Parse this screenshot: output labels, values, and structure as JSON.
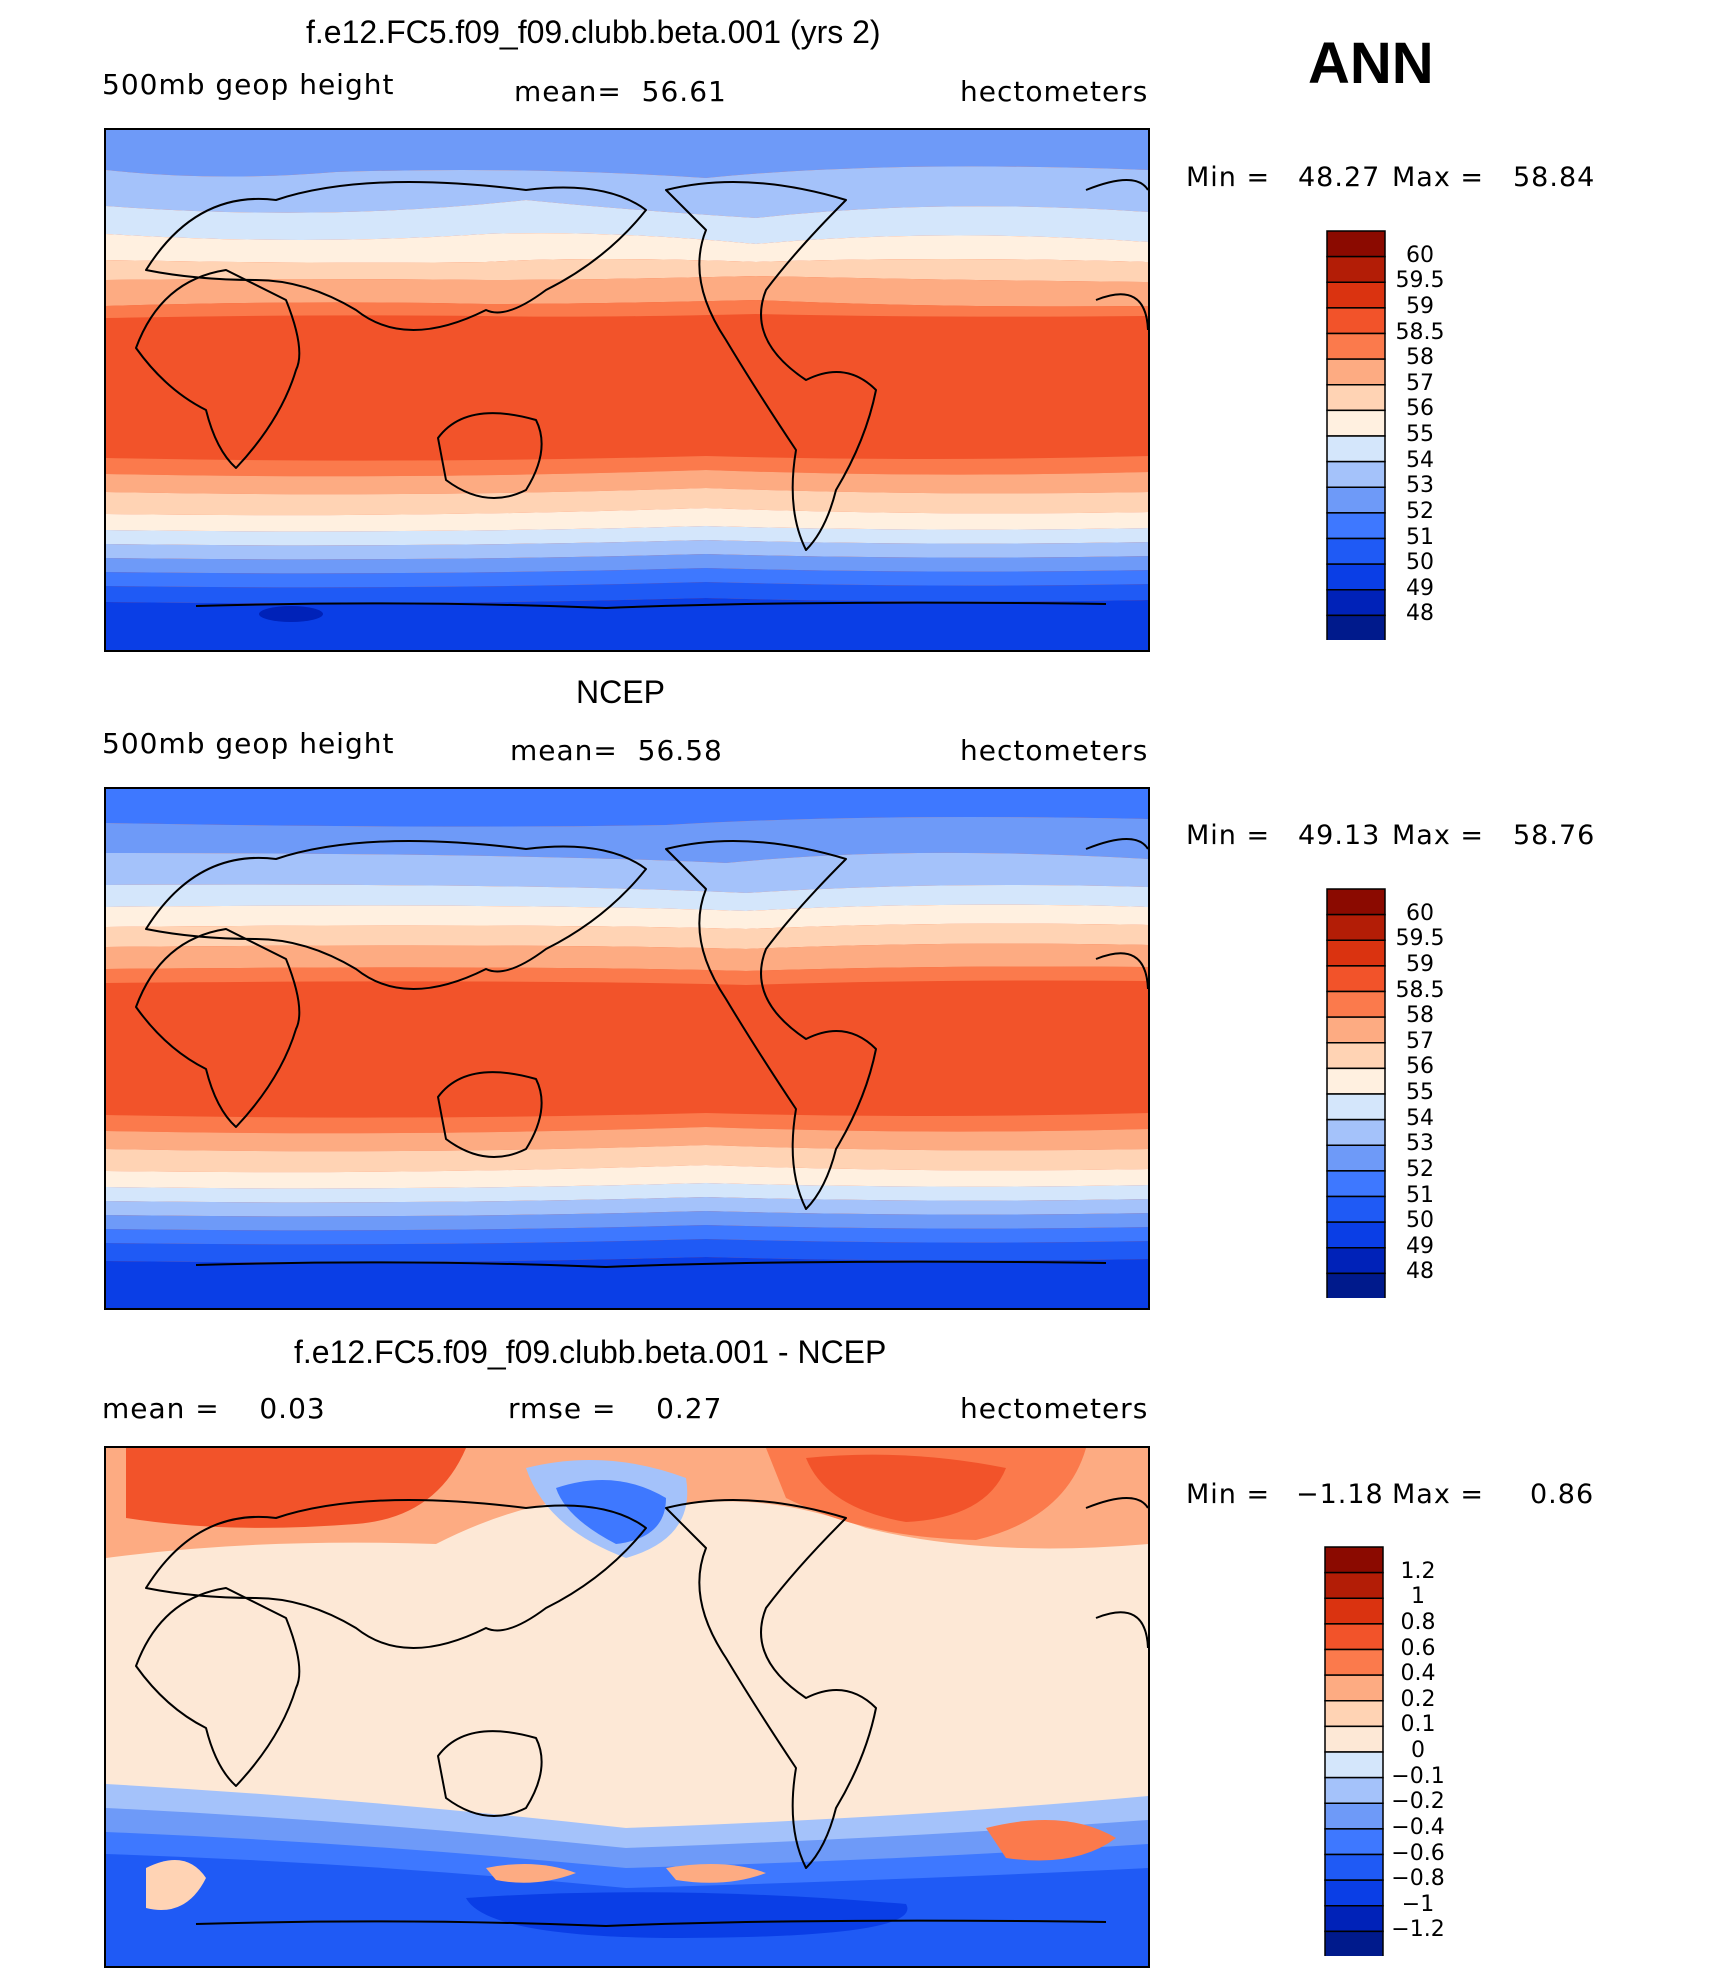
{
  "header": {
    "season": "ANN"
  },
  "colors": {
    "abs_palette": [
      "#001a8c",
      "#0022b8",
      "#0a3ee6",
      "#1f5af5",
      "#3e78ff",
      "#6e9af8",
      "#a4c2fa",
      "#d4e6fb",
      "#fff0e0",
      "#ffd3b4",
      "#fdab82",
      "#fb7a4c",
      "#f2532a",
      "#da3310",
      "#b31d06",
      "#8b0a00"
    ],
    "diff_palette": [
      "#001a8c",
      "#0022b8",
      "#0a3ee6",
      "#1f5af5",
      "#3e78ff",
      "#6e9af8",
      "#a4c2fa",
      "#d4e6fb",
      "#fde8d6",
      "#ffd3b4",
      "#fdab82",
      "#fb7a4c",
      "#f2532a",
      "#da3310",
      "#b31d06",
      "#8b0a00"
    ]
  },
  "panels": [
    {
      "title": "f.e12.FC5.f09_f09.clubb.beta.001 (yrs 2)",
      "left_label": "500mb geop height",
      "center_label": "mean=  56.61",
      "right_label": "hectometers",
      "min_label": "Min =",
      "min_value": "48.27",
      "max_label": "Max =",
      "max_value": "58.84"
    },
    {
      "title": "NCEP",
      "left_label": "500mb geop height",
      "center_label": "mean=  56.58",
      "right_label": "hectometers",
      "min_label": "Min =",
      "min_value": "49.13",
      "max_label": "Max =",
      "max_value": "58.76"
    },
    {
      "title": "f.e12.FC5.f09_f09.clubb.beta.001 - NCEP",
      "left_label": "mean =    0.03",
      "center_label": "rmse =    0.27",
      "right_label": "hectometers",
      "min_label": "Min =",
      "min_value": "−1.18",
      "max_label": "Max =",
      "max_value": "0.86"
    }
  ],
  "colorbar_abs": [
    "60",
    "59.5",
    "59",
    "58.5",
    "58",
    "57",
    "56",
    "55",
    "54",
    "53",
    "52",
    "51",
    "50",
    "49",
    "48"
  ],
  "colorbar_diff": [
    "1.2",
    "1",
    "0.8",
    "0.6",
    "0.4",
    "0.2",
    "0.1",
    "0",
    "−0.1",
    "−0.2",
    "−0.4",
    "−0.6",
    "−0.8",
    "−1",
    "−1.2"
  ],
  "chart_data": [
    {
      "type": "heatmap",
      "title": "f.e12.FC5.f09_f09.clubb.beta.001 (yrs 2)",
      "variable": "500mb geop height",
      "units": "hectometers",
      "mean": 56.61,
      "min": 48.27,
      "max": 58.84,
      "levels": [
        48,
        49,
        50,
        51,
        52,
        53,
        54,
        55,
        56,
        57,
        58,
        58.5,
        59,
        59.5,
        60
      ]
    },
    {
      "type": "heatmap",
      "title": "NCEP",
      "variable": "500mb geop height",
      "units": "hectometers",
      "mean": 56.58,
      "min": 49.13,
      "max": 58.76,
      "levels": [
        48,
        49,
        50,
        51,
        52,
        53,
        54,
        55,
        56,
        57,
        58,
        58.5,
        59,
        59.5,
        60
      ]
    },
    {
      "type": "heatmap",
      "title": "f.e12.FC5.f09_f09.clubb.beta.001 - NCEP",
      "units": "hectometers",
      "mean": 0.03,
      "rmse": 0.27,
      "min": -1.18,
      "max": 0.86,
      "levels": [
        -1.2,
        -1,
        -0.8,
        -0.6,
        -0.4,
        -0.2,
        -0.1,
        0,
        0.1,
        0.2,
        0.4,
        0.6,
        0.8,
        1,
        1.2
      ]
    }
  ]
}
